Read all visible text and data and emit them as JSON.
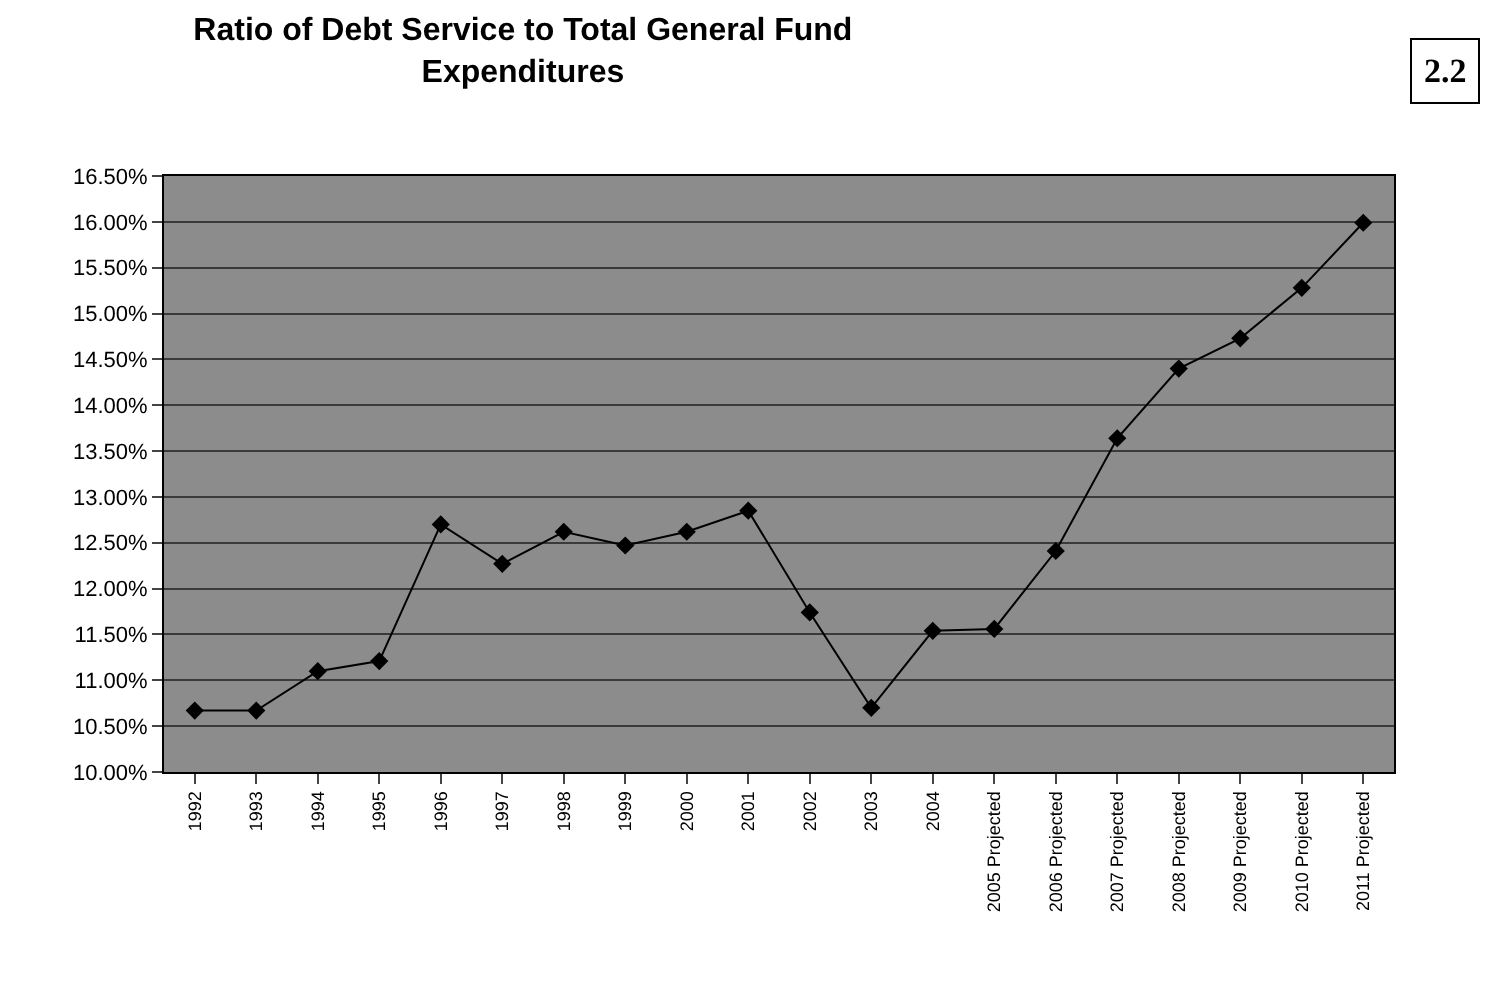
{
  "chart_data": {
    "type": "line",
    "title": "Ratio of Debt Service to Total General Fund Expenditures",
    "annotations": [
      "2.2"
    ],
    "categories": [
      "1992",
      "1993",
      "1994",
      "1995",
      "1996",
      "1997",
      "1998",
      "1999",
      "2000",
      "2001",
      "2002",
      "2003",
      "2004",
      "2005 Projected",
      "2006 Projected",
      "2007 Projected",
      "2008 Projected",
      "2009 Projected",
      "2010 Projected",
      "2011 Projected"
    ],
    "series": [
      {
        "color": "#000000",
        "values": [
          10.67,
          10.67,
          11.1,
          11.21,
          12.7,
          12.27,
          12.62,
          12.47,
          12.62,
          12.85,
          11.74,
          10.7,
          11.54,
          11.56,
          12.41,
          13.64,
          14.4,
          14.73,
          15.28,
          15.99
        ]
      }
    ],
    "ylim": [
      10,
      16.5
    ],
    "yticks": [
      {
        "value": 10,
        "label": "10.00%"
      },
      {
        "value": 10.5,
        "label": "10.50%"
      },
      {
        "value": 11,
        "label": "11.00%"
      },
      {
        "value": 11.5,
        "label": "11.50%"
      },
      {
        "value": 12,
        "label": "12.00%"
      },
      {
        "value": 12.5,
        "label": "12.50%"
      },
      {
        "value": 13,
        "label": "13.00%"
      },
      {
        "value": 13.5,
        "label": "13.50%"
      },
      {
        "value": 14,
        "label": "14.00%"
      },
      {
        "value": 14.5,
        "label": "14.50%"
      },
      {
        "value": 15,
        "label": "15.00%"
      },
      {
        "value": 15.5,
        "label": "15.50%"
      },
      {
        "value": 16,
        "label": "16.00%"
      },
      {
        "value": 16.5,
        "label": "16.50%"
      }
    ],
    "grid": "y",
    "marker": "diamond",
    "line_style": "solid"
  }
}
